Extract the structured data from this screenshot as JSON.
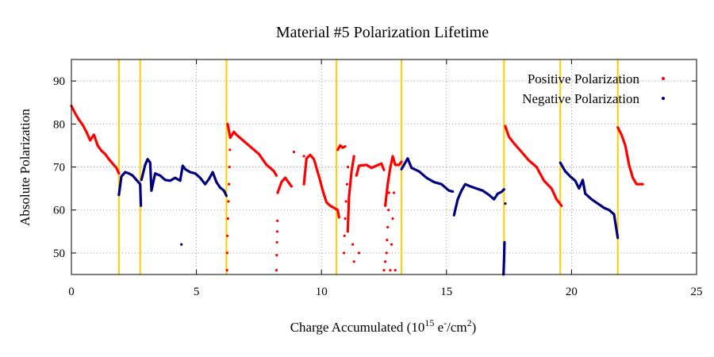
{
  "chart_data": {
    "type": "scatter",
    "title": "Material #5 Polarization Lifetime",
    "xlabel": "Charge Accumulated",
    "xlabel_parts": {
      "base": "Charge Accumulated (10",
      "exp": "15",
      "mid": " e",
      "minus": "-",
      "slash": "/cm",
      "two": "2",
      "close": ")"
    },
    "ylabel": "Absolute Polarization",
    "xlim": [
      0,
      25
    ],
    "ylim": [
      45,
      95
    ],
    "xticks": [
      0,
      5,
      10,
      15,
      20,
      25
    ],
    "yticks": [
      50,
      60,
      70,
      80,
      90
    ],
    "grid": true,
    "legend_position": "top-right",
    "vlines": {
      "color": "#ffcc00",
      "x": [
        1.9,
        2.75,
        6.2,
        10.6,
        13.2,
        17.3,
        19.55,
        21.85
      ]
    },
    "series": [
      {
        "name": "Positive Polarization",
        "color": "#ff0000",
        "segments": [
          [
            [
              0.0,
              84.2
            ],
            [
              0.15,
              82.5
            ],
            [
              0.3,
              81.0
            ],
            [
              0.45,
              79.8
            ],
            [
              0.6,
              78.2
            ],
            [
              0.75,
              76.2
            ],
            [
              0.9,
              77.5
            ],
            [
              1.05,
              75.0
            ],
            [
              1.2,
              73.8
            ],
            [
              1.35,
              73.0
            ],
            [
              1.5,
              71.8
            ],
            [
              1.65,
              70.8
            ],
            [
              1.8,
              69.8
            ],
            [
              1.9,
              68.5
            ]
          ],
          [
            [
              6.25,
              80.0
            ],
            [
              6.35,
              76.8
            ],
            [
              6.5,
              78.2
            ],
            [
              6.6,
              77.5
            ],
            [
              6.9,
              76.0
            ],
            [
              7.2,
              74.5
            ],
            [
              7.5,
              73.0
            ],
            [
              7.8,
              70.5
            ],
            [
              7.95,
              69.8
            ],
            [
              8.1,
              69.0
            ],
            [
              8.2,
              68.0
            ]
          ],
          [
            [
              8.25,
              64.0
            ],
            [
              8.4,
              66.5
            ],
            [
              8.55,
              67.5
            ],
            [
              8.7,
              66.3
            ],
            [
              8.8,
              65.5
            ]
          ],
          [
            [
              9.3,
              66.0
            ],
            [
              9.4,
              72.0
            ],
            [
              9.55,
              72.8
            ],
            [
              9.7,
              71.8
            ],
            [
              9.8,
              69.8
            ],
            [
              9.95,
              66.8
            ],
            [
              10.05,
              64.5
            ],
            [
              10.2,
              61.8
            ],
            [
              10.35,
              61.0
            ],
            [
              10.5,
              60.5
            ],
            [
              10.65,
              60.0
            ],
            [
              10.7,
              58.3
            ]
          ],
          [
            [
              10.65,
              74.0
            ],
            [
              10.75,
              75.0
            ],
            [
              10.85,
              74.5
            ],
            [
              10.95,
              74.8
            ]
          ],
          [
            [
              11.05,
              55.0
            ],
            [
              11.1,
              63.0
            ],
            [
              11.2,
              68.8
            ],
            [
              11.3,
              72.5
            ]
          ],
          [
            [
              11.4,
              68.0
            ],
            [
              11.5,
              70.3
            ],
            [
              11.8,
              70.5
            ],
            [
              12.0,
              69.8
            ],
            [
              12.2,
              70.3
            ],
            [
              12.4,
              70.8
            ],
            [
              12.5,
              69.3
            ]
          ],
          [
            [
              12.55,
              61.0
            ],
            [
              12.65,
              66.0
            ],
            [
              12.75,
              69.8
            ],
            [
              12.85,
              72.5
            ],
            [
              12.95,
              70.5
            ],
            [
              13.1,
              70.5
            ],
            [
              13.2,
              71.2
            ]
          ],
          [
            [
              17.35,
              79.5
            ],
            [
              17.5,
              77.0
            ],
            [
              17.7,
              75.5
            ],
            [
              18.0,
              73.5
            ],
            [
              18.3,
              71.5
            ],
            [
              18.6,
              70.0
            ],
            [
              18.9,
              66.8
            ],
            [
              19.2,
              65.0
            ],
            [
              19.4,
              62.5
            ],
            [
              19.6,
              61.0
            ]
          ],
          [
            [
              21.85,
              79.2
            ],
            [
              22.0,
              77.5
            ],
            [
              22.15,
              75.0
            ],
            [
              22.3,
              70.5
            ],
            [
              22.45,
              67.5
            ],
            [
              22.6,
              66.0
            ],
            [
              22.85,
              66.0
            ]
          ]
        ],
        "points": [
          [
            8.9,
            73.5
          ],
          [
            9.3,
            72.5
          ],
          [
            6.22,
            46.0
          ],
          [
            6.23,
            50.0
          ],
          [
            6.24,
            54.0
          ],
          [
            6.26,
            58.0
          ],
          [
            6.28,
            62.0
          ],
          [
            6.3,
            66.0
          ],
          [
            6.32,
            70.0
          ],
          [
            6.34,
            74.0
          ],
          [
            8.2,
            46.0
          ],
          [
            8.21,
            49.5
          ],
          [
            8.22,
            52.5
          ],
          [
            8.23,
            55.0
          ],
          [
            8.24,
            57.5
          ],
          [
            10.9,
            50.0
          ],
          [
            10.92,
            54.0
          ],
          [
            10.95,
            58.0
          ],
          [
            10.98,
            62.0
          ],
          [
            11.02,
            66.0
          ],
          [
            11.06,
            70.0
          ],
          [
            11.25,
            52.0
          ],
          [
            11.3,
            48.0
          ],
          [
            11.5,
            50.0
          ],
          [
            12.5,
            46.0
          ],
          [
            12.55,
            48.0
          ],
          [
            12.6,
            50.0
          ],
          [
            12.62,
            53.0
          ],
          [
            12.65,
            56.0
          ],
          [
            12.68,
            60.0
          ],
          [
            12.7,
            64.0
          ],
          [
            12.75,
            46.0
          ],
          [
            12.8,
            52.0
          ],
          [
            12.85,
            58.0
          ],
          [
            12.9,
            64.0
          ],
          [
            12.95,
            46.0
          ]
        ]
      },
      {
        "name": "Negative Polarization",
        "color": "#00007f",
        "segments": [
          [
            [
              1.9,
              63.5
            ],
            [
              2.0,
              67.8
            ],
            [
              2.15,
              68.8
            ],
            [
              2.3,
              68.5
            ],
            [
              2.45,
              68.0
            ],
            [
              2.6,
              67.0
            ],
            [
              2.75,
              66.0
            ],
            [
              2.78,
              61.0
            ]
          ],
          [
            [
              2.8,
              67.0
            ],
            [
              2.95,
              70.5
            ],
            [
              3.05,
              71.8
            ],
            [
              3.15,
              71.0
            ],
            [
              3.2,
              64.5
            ],
            [
              3.35,
              68.5
            ],
            [
              3.55,
              68.0
            ],
            [
              3.75,
              67.0
            ],
            [
              3.95,
              66.8
            ],
            [
              4.15,
              67.5
            ],
            [
              4.35,
              66.8
            ],
            [
              4.45,
              70.3
            ],
            [
              4.55,
              69.5
            ],
            [
              4.75,
              68.8
            ],
            [
              4.95,
              68.5
            ],
            [
              5.15,
              67.5
            ],
            [
              5.35,
              66.0
            ],
            [
              5.5,
              67.2
            ],
            [
              5.65,
              68.8
            ],
            [
              5.8,
              66.5
            ],
            [
              5.95,
              65.2
            ],
            [
              6.1,
              64.5
            ],
            [
              6.2,
              63.3
            ]
          ],
          [
            [
              13.2,
              69.5
            ],
            [
              13.45,
              72.0
            ],
            [
              13.6,
              69.8
            ],
            [
              13.9,
              69.0
            ],
            [
              14.2,
              67.5
            ],
            [
              14.5,
              66.5
            ],
            [
              14.8,
              66.0
            ],
            [
              15.1,
              64.5
            ],
            [
              15.25,
              64.3
            ]
          ],
          [
            [
              15.3,
              58.8
            ],
            [
              15.45,
              62.5
            ],
            [
              15.6,
              64.5
            ],
            [
              15.75,
              66.0
            ],
            [
              15.95,
              65.5
            ],
            [
              16.2,
              65.0
            ],
            [
              16.45,
              64.5
            ],
            [
              16.7,
              63.5
            ],
            [
              16.9,
              62.5
            ],
            [
              17.05,
              63.8
            ],
            [
              17.2,
              64.2
            ],
            [
              17.3,
              64.8
            ]
          ],
          [
            [
              17.28,
              45.0
            ],
            [
              17.3,
              48.0
            ],
            [
              17.32,
              52.5
            ]
          ],
          [
            [
              19.55,
              71.0
            ],
            [
              19.75,
              69.0
            ],
            [
              19.95,
              67.8
            ],
            [
              20.15,
              66.8
            ],
            [
              20.3,
              65.0
            ],
            [
              20.45,
              67.0
            ],
            [
              20.55,
              63.8
            ],
            [
              20.8,
              62.5
            ],
            [
              21.05,
              61.5
            ],
            [
              21.3,
              60.5
            ],
            [
              21.5,
              60.0
            ],
            [
              21.7,
              59.0
            ],
            [
              21.85,
              53.5
            ]
          ]
        ],
        "points": [
          [
            4.4,
            52.0
          ],
          [
            17.35,
            61.5
          ]
        ]
      }
    ]
  }
}
